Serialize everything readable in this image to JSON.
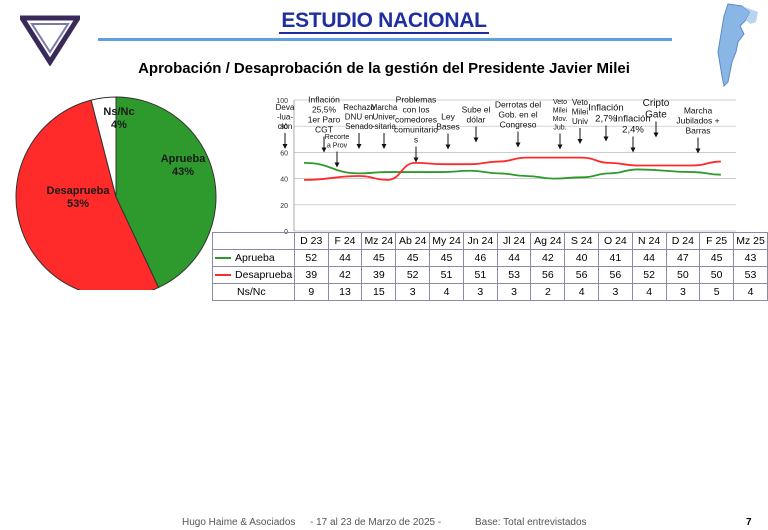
{
  "header": {
    "title": "ESTUDIO NACIONAL",
    "subtitle": "Aprobación / Desaprobación de la gestión del Presidente Javier Milei"
  },
  "colors": {
    "aprueba": "#2e9a2e",
    "desaprueba": "#ff2a2a",
    "nsnc": "#ffffff",
    "title": "#1f2fa0"
  },
  "chart_data": [
    {
      "type": "pie",
      "slices": [
        {
          "label": "Aprueba",
          "value": 43,
          "pct_label": "43%"
        },
        {
          "label": "Desaprueba",
          "value": 53,
          "pct_label": "53%"
        },
        {
          "label": "Ns/Nc",
          "value": 4,
          "pct_label": "4%"
        }
      ]
    },
    {
      "type": "line",
      "categories": [
        "D 23",
        "F 24",
        "Mz 24",
        "Ab 24",
        "My 24",
        "Jn 24",
        "Jl 24",
        "Ag 24",
        "S 24",
        "O 24",
        "N 24",
        "D 24",
        "F 25",
        "Mz 25"
      ],
      "x_monthly": [
        0,
        2,
        3,
        4,
        5,
        6,
        7,
        8,
        9,
        10,
        11,
        12,
        14,
        15
      ],
      "series": [
        {
          "name": "Aprueba",
          "values": [
            52,
            44,
            45,
            45,
            45,
            46,
            44,
            42,
            40,
            41,
            44,
            47,
            45,
            43
          ]
        },
        {
          "name": "Desaprueba",
          "values": [
            39,
            42,
            39,
            52,
            51,
            51,
            53,
            56,
            56,
            56,
            52,
            50,
            50,
            53
          ]
        }
      ],
      "nsnc": {
        "name": "Ns/Nc",
        "values": [
          9,
          13,
          15,
          3,
          4,
          3,
          3,
          2,
          4,
          3,
          4,
          3,
          5,
          4
        ]
      },
      "ylim": [
        0,
        100
      ],
      "yticks": [
        0,
        20,
        40,
        60,
        80,
        100
      ],
      "grid": true,
      "annotations": [
        {
          "text": [
            "Deva",
            "-lua-",
            "ción"
          ]
        },
        {
          "text": [
            "Inflación",
            "25,5%",
            "1er Paro",
            "CGT"
          ]
        },
        {
          "text": [
            "Recorte",
            "a Prov"
          ]
        },
        {
          "text": [
            "Rechazo",
            "DNU en",
            "Senado"
          ]
        },
        {
          "text": [
            "Marcha",
            "Univer",
            "-sitaria"
          ]
        },
        {
          "text": [
            "Problemas",
            "con los",
            "comedores",
            "comunitario",
            "s"
          ]
        },
        {
          "text": [
            "Ley",
            "Bases"
          ]
        },
        {
          "text": [
            "Sube el",
            "dólar"
          ]
        },
        {
          "text": [
            "Derrotas del",
            "Gob. en el",
            "Congreso"
          ]
        },
        {
          "text": [
            "Veto",
            "Milei",
            "Mov.",
            "Jub."
          ]
        },
        {
          "text": [
            "Veto",
            "Milei",
            "Univ"
          ]
        },
        {
          "text": [
            "Inflación",
            "2,7%"
          ]
        },
        {
          "text": [
            "Inflación",
            "2,4%"
          ]
        },
        {
          "text": [
            "Cripto",
            "Gate"
          ]
        },
        {
          "text": [
            "Marcha",
            "Jubilados +",
            "Barras"
          ]
        }
      ]
    }
  ],
  "footer": {
    "company": "Hugo Haime & Asociados",
    "dates": "-  17 al 23 de Marzo  de 2025    -",
    "base": "Base: Total entrevistados",
    "page": "7"
  }
}
